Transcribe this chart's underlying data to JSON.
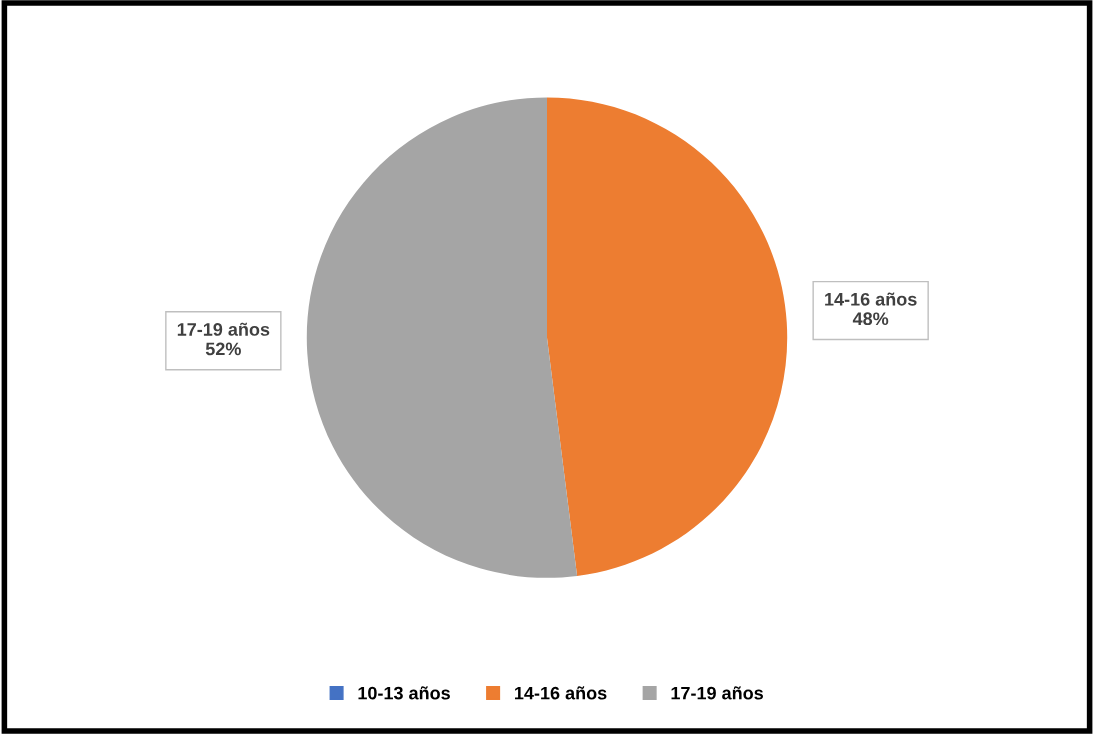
{
  "chart_data": {
    "type": "pie",
    "categories": [
      "10-13 años",
      "14-16 años",
      "17-19 años"
    ],
    "values": [
      0,
      48,
      52
    ],
    "colors": [
      "#4472c4",
      "#ed7d31",
      "#a5a5a5"
    ],
    "value_labels": [
      null,
      "14-16 años\n48%",
      "17-19 años\n52%"
    ],
    "legend": "bottom"
  }
}
